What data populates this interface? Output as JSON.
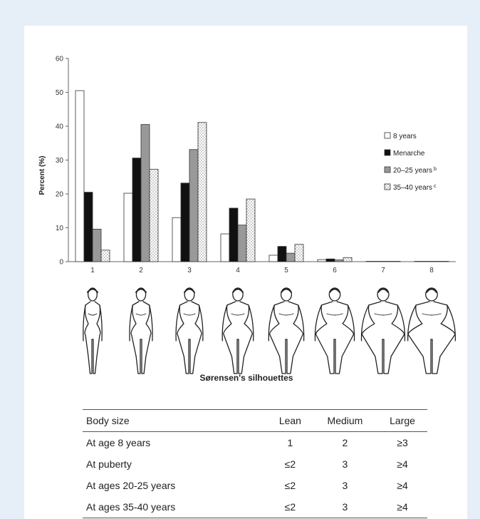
{
  "chart_data": {
    "type": "bar",
    "ylabel": "Percent (%)",
    "xlabel": "Sørensen's silhouettes",
    "ylim": [
      0,
      60
    ],
    "yticks": [
      0,
      10,
      20,
      30,
      40,
      50,
      60
    ],
    "categories": [
      "1",
      "2",
      "3",
      "4",
      "5",
      "6",
      "7",
      "8"
    ],
    "series": [
      {
        "name": "8 years",
        "values": [
          50.5,
          20.2,
          13.0,
          8.2,
          1.9,
          0.6,
          0.1,
          0.1
        ],
        "color": "#ffffff",
        "pattern": "none"
      },
      {
        "name": "Menarche",
        "values": [
          20.5,
          30.6,
          23.2,
          15.8,
          4.5,
          0.8,
          0.1,
          0.1
        ],
        "color": "#111111",
        "pattern": "none"
      },
      {
        "name": "20–25 years",
        "sup": "b",
        "values": [
          9.6,
          40.5,
          33.1,
          10.8,
          2.5,
          0.5,
          0.1,
          0.1
        ],
        "color": "#999999",
        "pattern": "none"
      },
      {
        "name": "35–40 years",
        "sup": "c",
        "values": [
          3.4,
          27.3,
          41.1,
          18.5,
          5.1,
          1.2,
          0.1,
          0.1
        ],
        "color": "#ffffff",
        "pattern": "dots"
      }
    ],
    "legend_position": "right",
    "grid": false
  },
  "table": {
    "headers": [
      "Body size",
      "Lean",
      "Medium",
      "Large"
    ],
    "rows": [
      [
        "At age 8 years",
        "1",
        "2",
        "≥3"
      ],
      [
        "At puberty",
        "≤2",
        "3",
        "≥4"
      ],
      [
        "At ages 20-25 years",
        "≤2",
        "3",
        "≥4"
      ],
      [
        "At ages 35-40 years",
        "≤2",
        "3",
        "≥4"
      ]
    ]
  },
  "silhouettes": {
    "count": 8,
    "icon": "female-body-silhouette-icon"
  }
}
